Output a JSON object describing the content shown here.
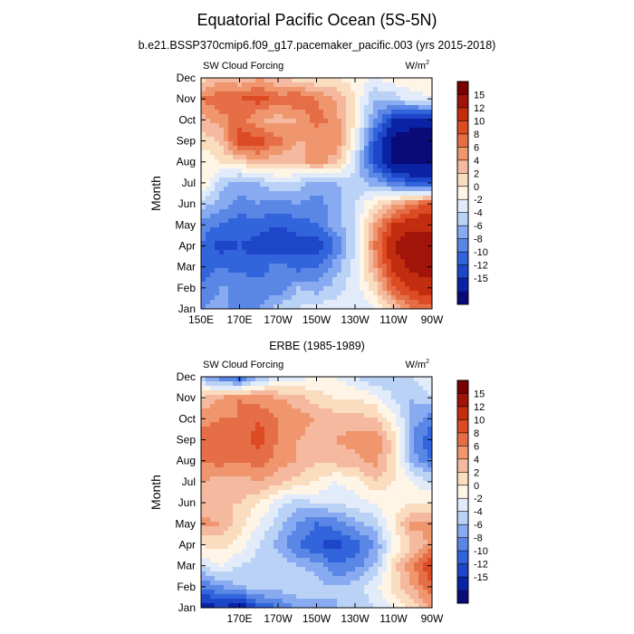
{
  "title": "Equatorial Pacific Ocean (5S-5N)",
  "colors": {
    "levels": [
      "#0a0a78",
      "#0a23a5",
      "#1e46c8",
      "#3264dc",
      "#5a87e6",
      "#87aaf0",
      "#b9d2f5",
      "#e1ebfa",
      "#fff5e6",
      "#fadcbe",
      "#f5b9a0",
      "#f0966e",
      "#e66e46",
      "#dc4b23",
      "#c32d0f",
      "#a0140a",
      "#780000"
    ]
  },
  "chart_data": [
    {
      "type": "heatmap",
      "title": "b.e21.BSSP370cmip6.f09_g17.pacemaker_pacific.003 (yrs 2015-2018)",
      "left_label": "SW Cloud Forcing",
      "units_label": "W/m",
      "units_sup": "2",
      "ylabel": "Month",
      "xlabel": "",
      "y_tick_labels": [
        "Jan",
        "Feb",
        "Mar",
        "Apr",
        "May",
        "Jun",
        "Jul",
        "Aug",
        "Sep",
        "Oct",
        "Nov",
        "Dec"
      ],
      "x_tick_labels": [
        "150E",
        "170E",
        "170W",
        "150W",
        "130W",
        "110W",
        "90W"
      ],
      "x_tick_lons": [
        150,
        170,
        190,
        210,
        230,
        250,
        270
      ],
      "xlim": [
        150,
        270
      ],
      "ylim": [
        1,
        12
      ],
      "colorbar_labels": [
        "15",
        "12",
        "10",
        "8",
        "6",
        "4",
        "2",
        "0",
        "-2",
        "-4",
        "-6",
        "-8",
        "-10",
        "-12",
        "-15"
      ],
      "contour_levels": [
        -15,
        -12,
        -10,
        -8,
        -6,
        -4,
        -2,
        0,
        2,
        4,
        6,
        8,
        10,
        12,
        15
      ],
      "lons": [
        150,
        160,
        170,
        180,
        190,
        200,
        210,
        220,
        230,
        240,
        250,
        260,
        270
      ],
      "grid": [
        [
          -6,
          -5,
          -7,
          -6,
          -3,
          -2,
          -1,
          -1,
          -2,
          0,
          4,
          8,
          9
        ],
        [
          -8,
          -6,
          -6,
          -7,
          -8,
          -4,
          -5,
          -3,
          -1,
          3,
          10,
          13,
          14
        ],
        [
          -9,
          -8,
          -9,
          -9,
          -7,
          -9,
          -8,
          -5,
          -1,
          6,
          13,
          16,
          16
        ],
        [
          -8,
          -11,
          -10,
          -11,
          -12,
          -11,
          -12,
          -8,
          -2,
          8,
          15,
          18,
          18
        ],
        [
          -7,
          -8,
          -9,
          -9,
          -10,
          -9,
          -8,
          -5,
          -2,
          6,
          12,
          14,
          14
        ],
        [
          -3,
          -5,
          -7,
          -6,
          -7,
          -6,
          -7,
          -5,
          -2,
          2,
          5,
          9,
          10
        ],
        [
          3,
          -3,
          -5,
          -4,
          -2,
          -3,
          -5,
          -4,
          -3,
          -5,
          -8,
          -10,
          -10
        ],
        [
          0,
          2,
          3,
          6,
          4,
          5,
          7,
          5,
          -2,
          -10,
          -15,
          -16,
          -16
        ],
        [
          3,
          4,
          12,
          11,
          9,
          6,
          6,
          8,
          0,
          -10,
          -16,
          -17,
          -17
        ],
        [
          5,
          7,
          9,
          6,
          5,
          6,
          9,
          7,
          2,
          -6,
          -12,
          -14,
          -14
        ],
        [
          8,
          10,
          10,
          11,
          9,
          10,
          8,
          6,
          2,
          -4,
          -3,
          -1,
          0
        ],
        [
          3,
          5,
          4,
          6,
          4,
          3,
          2,
          2,
          1,
          0,
          1,
          2,
          1
        ]
      ]
    },
    {
      "type": "heatmap",
      "title": "ERBE (1985-1989)",
      "left_label": "SW Cloud Forcing",
      "units_label": "W/m",
      "units_sup": "2",
      "ylabel": "Month",
      "xlabel": "",
      "y_tick_labels": [
        "Jan",
        "Feb",
        "Mar",
        "Apr",
        "May",
        "Jun",
        "Jul",
        "Aug",
        "Sep",
        "Oct",
        "Nov",
        "Dec"
      ],
      "x_tick_labels": [
        "170E",
        "170W",
        "150W",
        "130W",
        "110W",
        "90W"
      ],
      "x_tick_lons": [
        170,
        190,
        210,
        230,
        250,
        270
      ],
      "xlim": [
        150,
        270
      ],
      "ylim": [
        1,
        12
      ],
      "colorbar_labels": [
        "15",
        "12",
        "10",
        "8",
        "6",
        "4",
        "2",
        "0",
        "-2",
        "-4",
        "-6",
        "-8",
        "-10",
        "-12",
        "-15"
      ],
      "contour_levels": [
        -15,
        -12,
        -10,
        -8,
        -6,
        -4,
        -2,
        0,
        2,
        4,
        6,
        8,
        10,
        12,
        15
      ],
      "lons": [
        150,
        160,
        170,
        180,
        190,
        200,
        210,
        220,
        230,
        240,
        250,
        260,
        270
      ],
      "grid": [
        [
          -14,
          -12,
          -14,
          -10,
          -8,
          -6,
          -5,
          -4,
          -3,
          -2,
          0,
          3,
          6
        ],
        [
          -8,
          -6,
          -4,
          -3,
          -3,
          -2,
          -3,
          -4,
          -3,
          -1,
          3,
          6,
          10
        ],
        [
          -2,
          0,
          -2,
          -3,
          -2,
          -4,
          -5,
          -8,
          -7,
          -4,
          3,
          8,
          12
        ],
        [
          2,
          3,
          1,
          -2,
          -5,
          -8,
          -10,
          -11,
          -9,
          -6,
          0,
          4,
          7
        ],
        [
          7,
          6,
          3,
          0,
          -3,
          -6,
          -8,
          -7,
          -5,
          -3,
          2,
          7,
          6
        ],
        [
          4,
          4,
          4,
          2,
          -1,
          -3,
          -2,
          -2,
          -1,
          0,
          1,
          2,
          2
        ],
        [
          6,
          5,
          5,
          6,
          5,
          3,
          2,
          0,
          1,
          4,
          2,
          0,
          -2
        ],
        [
          8,
          9,
          8,
          9,
          7,
          6,
          4,
          5,
          5,
          7,
          3,
          -5,
          -8
        ],
        [
          9,
          10,
          9,
          11,
          8,
          6,
          5,
          6,
          7,
          8,
          3,
          -6,
          -10
        ],
        [
          7,
          8,
          8,
          10,
          8,
          7,
          6,
          5,
          5,
          4,
          1,
          -5,
          -7
        ],
        [
          4,
          6,
          8,
          7,
          6,
          5,
          3,
          2,
          2,
          1,
          -2,
          -4,
          -2
        ],
        [
          -4,
          -8,
          -10,
          -4,
          -2,
          -1,
          0,
          0,
          -2,
          -4,
          -4,
          -2,
          0
        ]
      ]
    }
  ]
}
